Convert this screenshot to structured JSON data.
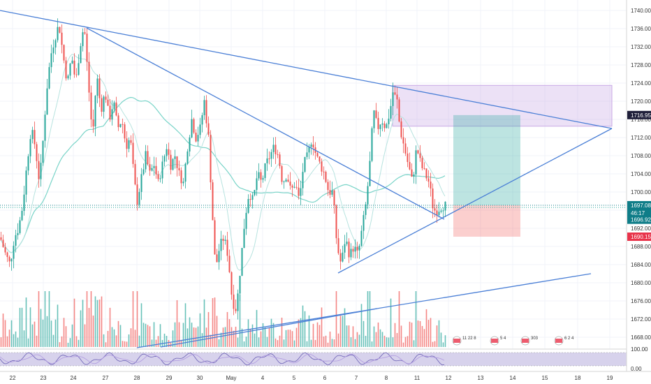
{
  "chart_data": {
    "type": "candlestick",
    "y_axis": {
      "ticks": [
        "1740.00",
        "1736.00",
        "1732.00",
        "1728.00",
        "1724.00",
        "1720.00",
        "1716.00",
        "1712.00",
        "1708.00",
        "1704.00",
        "1700.00",
        "1696.00",
        "1692.00",
        "1688.00",
        "1684.00",
        "1680.00",
        "1676.00",
        "1672.00",
        "1668.00"
      ],
      "range": [
        1665.5,
        1742
      ]
    },
    "x_axis": {
      "ticks": [
        "22",
        "23",
        "24",
        "27",
        "28",
        "29",
        "30",
        "May",
        "4",
        "5",
        "6",
        "7",
        "8",
        "11",
        "12",
        "13",
        "14",
        "15",
        "18",
        "19"
      ]
    },
    "price_tags": [
      {
        "label": "1716.95",
        "value": 1716.95,
        "color": "#1f1f3a"
      },
      {
        "label": "1697.08",
        "value": 1697.08,
        "color": "#0f7d88"
      },
      {
        "label": "46:17",
        "value": 1695.35,
        "color": "#0f7d88"
      },
      {
        "label": "1696.92",
        "value": 1693.9,
        "color": "#0f7d88"
      },
      {
        "label": "1690.15",
        "value": 1690.15,
        "color": "#e8334a"
      }
    ],
    "current_price": 1697.08,
    "oscillator": {
      "ticks": [
        "100.00",
        "0.00"
      ],
      "range": [
        -10,
        110
      ],
      "band": [
        20,
        80
      ]
    },
    "events": [
      "11 22 8",
      "5 4",
      "303",
      "6 2 4"
    ],
    "colors": {
      "up": "#26a69a",
      "down": "#ef5350",
      "trendline": "#4a7fd6",
      "ma_slow": "#79d4c8",
      "ma_fast": "#b7e3df",
      "zone": "#c8a8e6",
      "target": "#26a69a",
      "stop": "#ef5350",
      "oscillator": "#8b7fc9"
    }
  }
}
